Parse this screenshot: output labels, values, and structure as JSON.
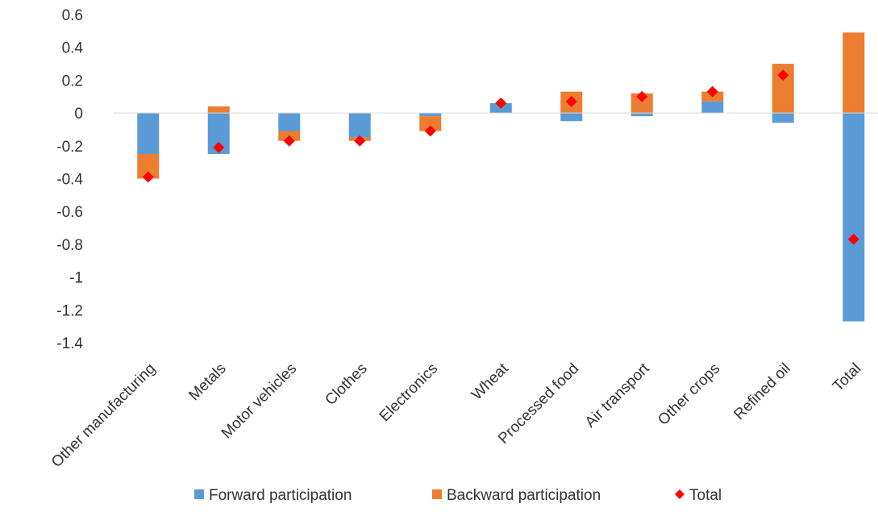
{
  "chart_data": {
    "type": "bar",
    "stacked": true,
    "categories": [
      "Other manufacturing",
      "Metals",
      "Motor vehicles",
      "Clothes",
      "Electronics",
      "Wheat",
      "Processed food",
      "Air transport",
      "Other crops",
      "Refined oil",
      "Total"
    ],
    "series": [
      {
        "name": "Forward participation",
        "type": "bar",
        "color": "#5B9BD5",
        "values": [
          -0.25,
          -0.25,
          -0.11,
          -0.15,
          -0.02,
          0.06,
          -0.05,
          -0.02,
          0.07,
          -0.06,
          -1.27
        ]
      },
      {
        "name": "Backward participation",
        "type": "bar",
        "color": "#ED7D31",
        "values": [
          -0.15,
          0.04,
          -0.06,
          -0.02,
          -0.09,
          0.0,
          0.13,
          0.12,
          0.06,
          0.3,
          0.49
        ]
      },
      {
        "name": "Total",
        "type": "marker",
        "marker": "diamond",
        "color": "#FF0000",
        "values": [
          -0.39,
          -0.21,
          -0.17,
          -0.17,
          -0.11,
          0.06,
          0.07,
          0.1,
          0.13,
          0.23,
          -0.77
        ]
      }
    ],
    "yticks": [
      "0.6",
      "0.4",
      "0.2",
      "0",
      "-0.2",
      "-0.4",
      "-0.6",
      "-0.8",
      "-1",
      "-1.2",
      "-1.4"
    ],
    "ylim": [
      -1.4,
      0.6
    ],
    "xlabel": "",
    "ylabel": "",
    "grid": false,
    "legend_position": "bottom"
  }
}
